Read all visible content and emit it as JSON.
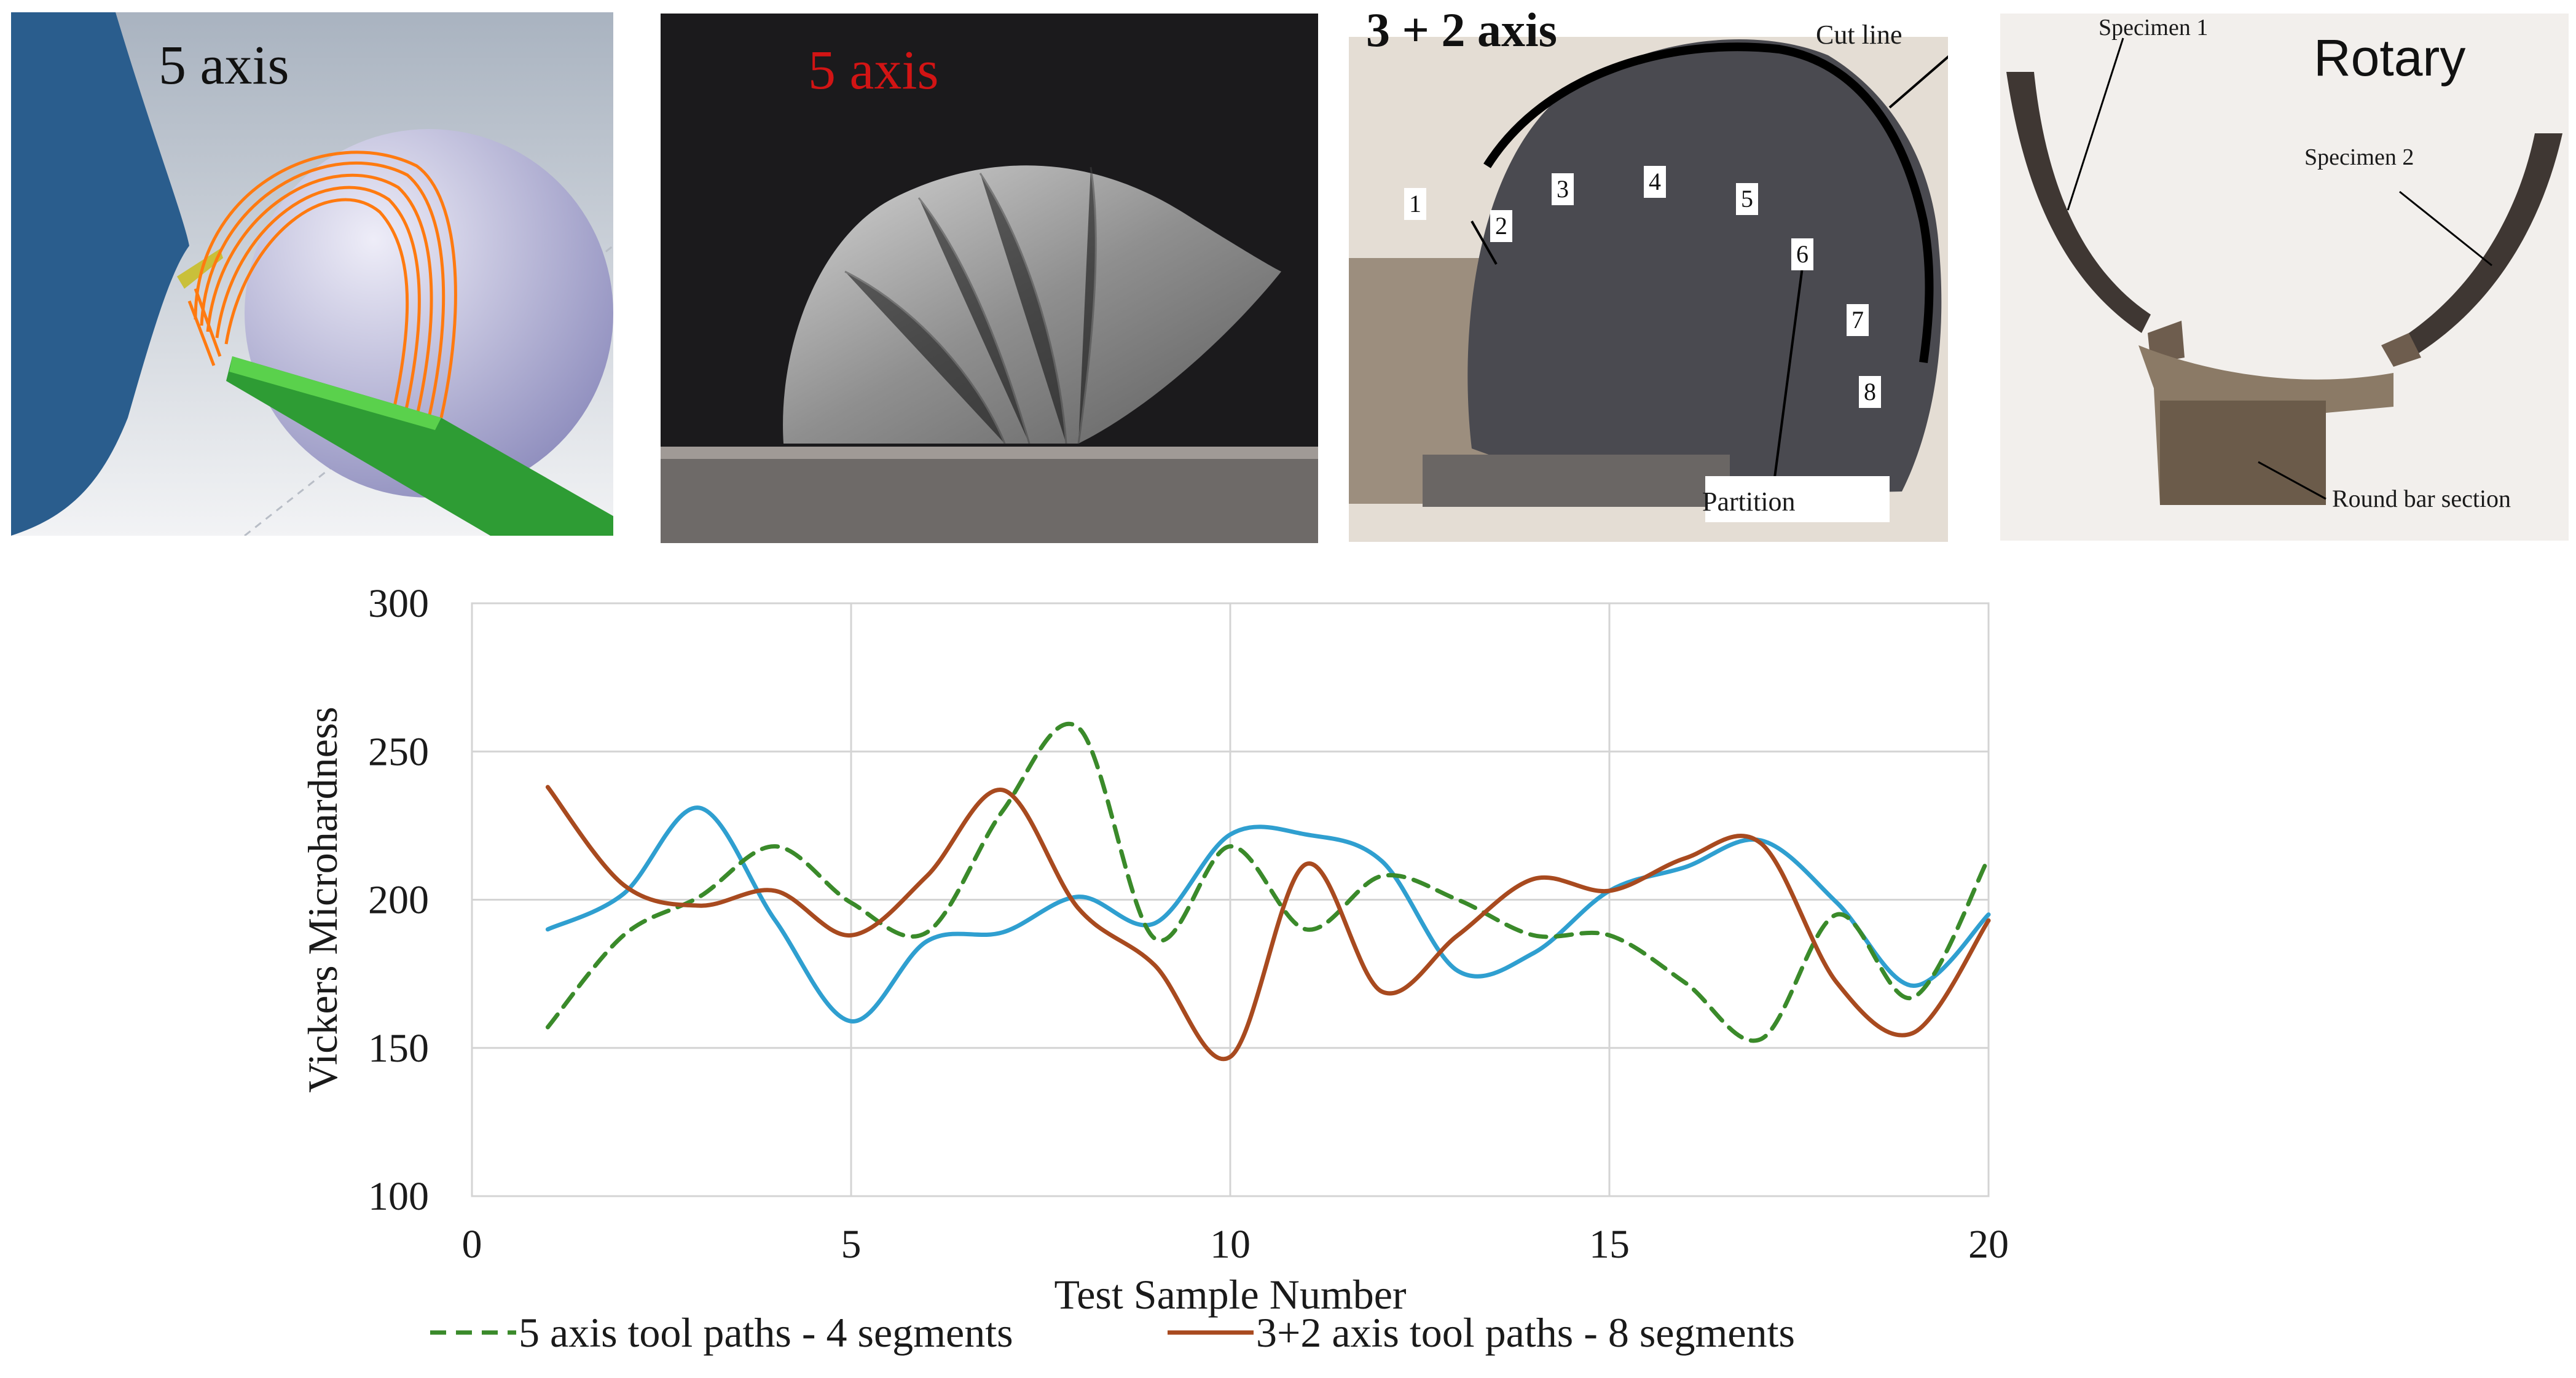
{
  "panels": [
    {
      "title": "5 axis",
      "title_color": "#111111"
    },
    {
      "title": "5 axis",
      "title_color": "#d21414"
    },
    {
      "title": "3 + 2 axis",
      "title_color": "#111111",
      "labels": {
        "cut_line": "Cut line",
        "partition": "Partition"
      },
      "segment_numbers": [
        "1",
        "2",
        "3",
        "4",
        "5",
        "6",
        "7",
        "8"
      ]
    },
    {
      "title": "Rotary",
      "title_color": "#111111",
      "labels": {
        "specimen_1": "Specimen 1",
        "specimen_2": "Specimen 2",
        "round_bar": "Round bar section"
      }
    }
  ],
  "chart_data": {
    "type": "line",
    "xlabel": "Test Sample Number",
    "ylabel": "Vickers Microhardness",
    "xlim": [
      0,
      20
    ],
    "ylim": [
      100,
      300
    ],
    "xticks": [
      0,
      5,
      10,
      15,
      20
    ],
    "yticks": [
      100,
      150,
      200,
      250,
      300
    ],
    "grid": true,
    "legend_position": "bottom",
    "x": [
      1,
      2,
      3,
      4,
      5,
      6,
      7,
      8,
      9,
      10,
      11,
      12,
      13,
      14,
      15,
      16,
      17,
      18,
      19,
      20
    ],
    "series": [
      {
        "name": "5 axis tool paths - 4 segments",
        "color": "#3a8a2a",
        "style": "dashed",
        "values": [
          157,
          188,
          201,
          218,
          199,
          189,
          230,
          258,
          187,
          218,
          190,
          208,
          200,
          188,
          188,
          172,
          153,
          195,
          167,
          214
        ]
      },
      {
        "name": "3+2 axis tool paths - 8 segments",
        "color": "#a84a1f",
        "style": "solid",
        "values": [
          238,
          205,
          198,
          203,
          188,
          208,
          237,
          197,
          178,
          147,
          212,
          169,
          188,
          207,
          203,
          214,
          219,
          172,
          155,
          193
        ]
      },
      {
        "name": "",
        "color": "#2f9fd0",
        "style": "solid",
        "values": [
          190,
          202,
          231,
          193,
          159,
          186,
          189,
          201,
          192,
          222,
          222,
          213,
          176,
          182,
          203,
          211,
          220,
          199,
          171,
          195
        ]
      }
    ]
  }
}
